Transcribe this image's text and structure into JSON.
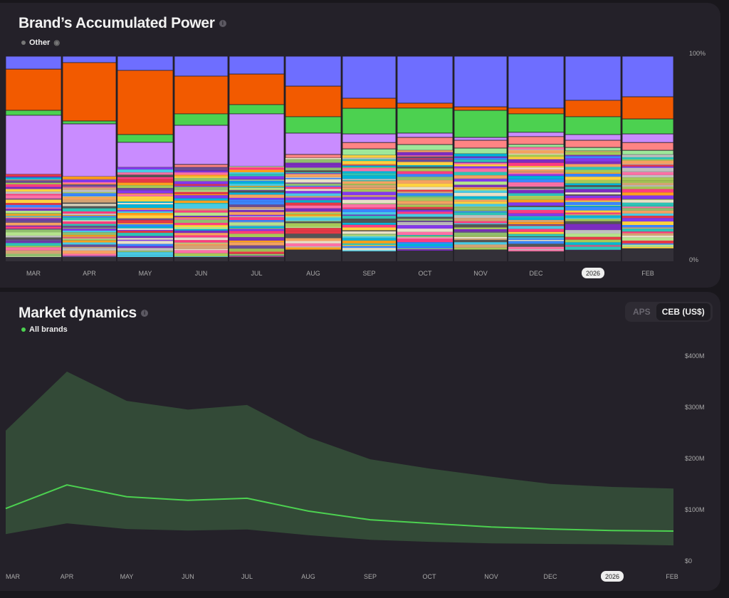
{
  "power": {
    "title": "Brand’s Accumulated Power",
    "legend": "Other",
    "y_top": "100%",
    "y_bottom": "0%"
  },
  "market": {
    "title": "Market dynamics",
    "legend": "All brands",
    "toggle": [
      "APS",
      "CEB (US$)"
    ],
    "active_toggle": "CEB (US$)"
  },
  "chart_data": [
    {
      "type": "bar",
      "stacked": "percent",
      "title": "Brand’s Accumulated Power",
      "categories": [
        "MAR",
        "APR",
        "MAY",
        "JUN",
        "JUL",
        "AUG",
        "SEP",
        "OCT",
        "NOV",
        "DEC",
        "2026",
        "FEB"
      ],
      "highlight_category": "2026",
      "series": [
        {
          "name": "brand-blue",
          "color": "#6e6eff",
          "values": [
            6.3,
            3.1,
            6.9,
            9.7,
            8.7,
            14.6,
            20.5,
            22.9,
            24.7,
            25.3,
            21.5,
            19.8
          ]
        },
        {
          "name": "brand-orange",
          "color": "#f25a00",
          "values": [
            20.1,
            28.5,
            31.3,
            18.4,
            14.9,
            14.9,
            4.9,
            2.4,
            1.7,
            2.8,
            8.0,
            10.8
          ]
        },
        {
          "name": "brand-green",
          "color": "#4cd150",
          "values": [
            2.4,
            1.4,
            3.8,
            5.6,
            4.5,
            8.0,
            12.5,
            12.2,
            13.2,
            9.0,
            8.7,
            7.3
          ]
        },
        {
          "name": "brand-purple",
          "color": "#c98cff",
          "values": [
            28.8,
            25.7,
            12.2,
            19.1,
            25.7,
            10.4,
            4.2,
            2.1,
            1.4,
            2.1,
            2.8,
            4.2
          ]
        },
        {
          "name": "brand-salmon",
          "color": "#ff8484",
          "values": [
            0,
            0,
            0,
            1.4,
            0,
            1.7,
            3.1,
            3.5,
            3.8,
            3.8,
            3.5,
            3.8
          ]
        },
        {
          "name": "brand-lightgreen",
          "color": "#9ee89a",
          "values": [
            0,
            0,
            0,
            0,
            0,
            0,
            3.1,
            2.8,
            2.8,
            1.4,
            1.7,
            2.1
          ]
        }
      ],
      "remainder": "Other",
      "ylim": [
        0,
        100
      ],
      "ytick_labels": [
        "0%",
        "100%"
      ]
    },
    {
      "type": "area",
      "title": "Market dynamics",
      "x": [
        "MAR",
        "APR",
        "MAY",
        "JUN",
        "JUL",
        "AUG",
        "SEP",
        "OCT",
        "NOV",
        "DEC",
        "2026",
        "FEB"
      ],
      "highlight_category": "2026",
      "series": [
        {
          "name": "All brands",
          "color": "#4cd150",
          "values": [
            101,
            147,
            124,
            117,
            121,
            96,
            79,
            72,
            65,
            61,
            58,
            57
          ]
        }
      ],
      "band": {
        "upper": [
          253,
          368,
          311,
          294,
          303,
          240,
          197,
          179,
          163,
          149,
          143,
          140
        ],
        "lower": [
          51,
          72,
          61,
          58,
          60,
          49,
          40,
          36,
          33,
          32,
          31,
          29
        ],
        "color": "#334a37"
      },
      "unit": "US$ M",
      "ylim": [
        0,
        400
      ],
      "yticks": [
        0,
        100,
        200,
        300,
        400
      ],
      "ytick_labels": [
        "$0",
        "$100M",
        "$200M",
        "$300M",
        "$400M"
      ]
    }
  ]
}
